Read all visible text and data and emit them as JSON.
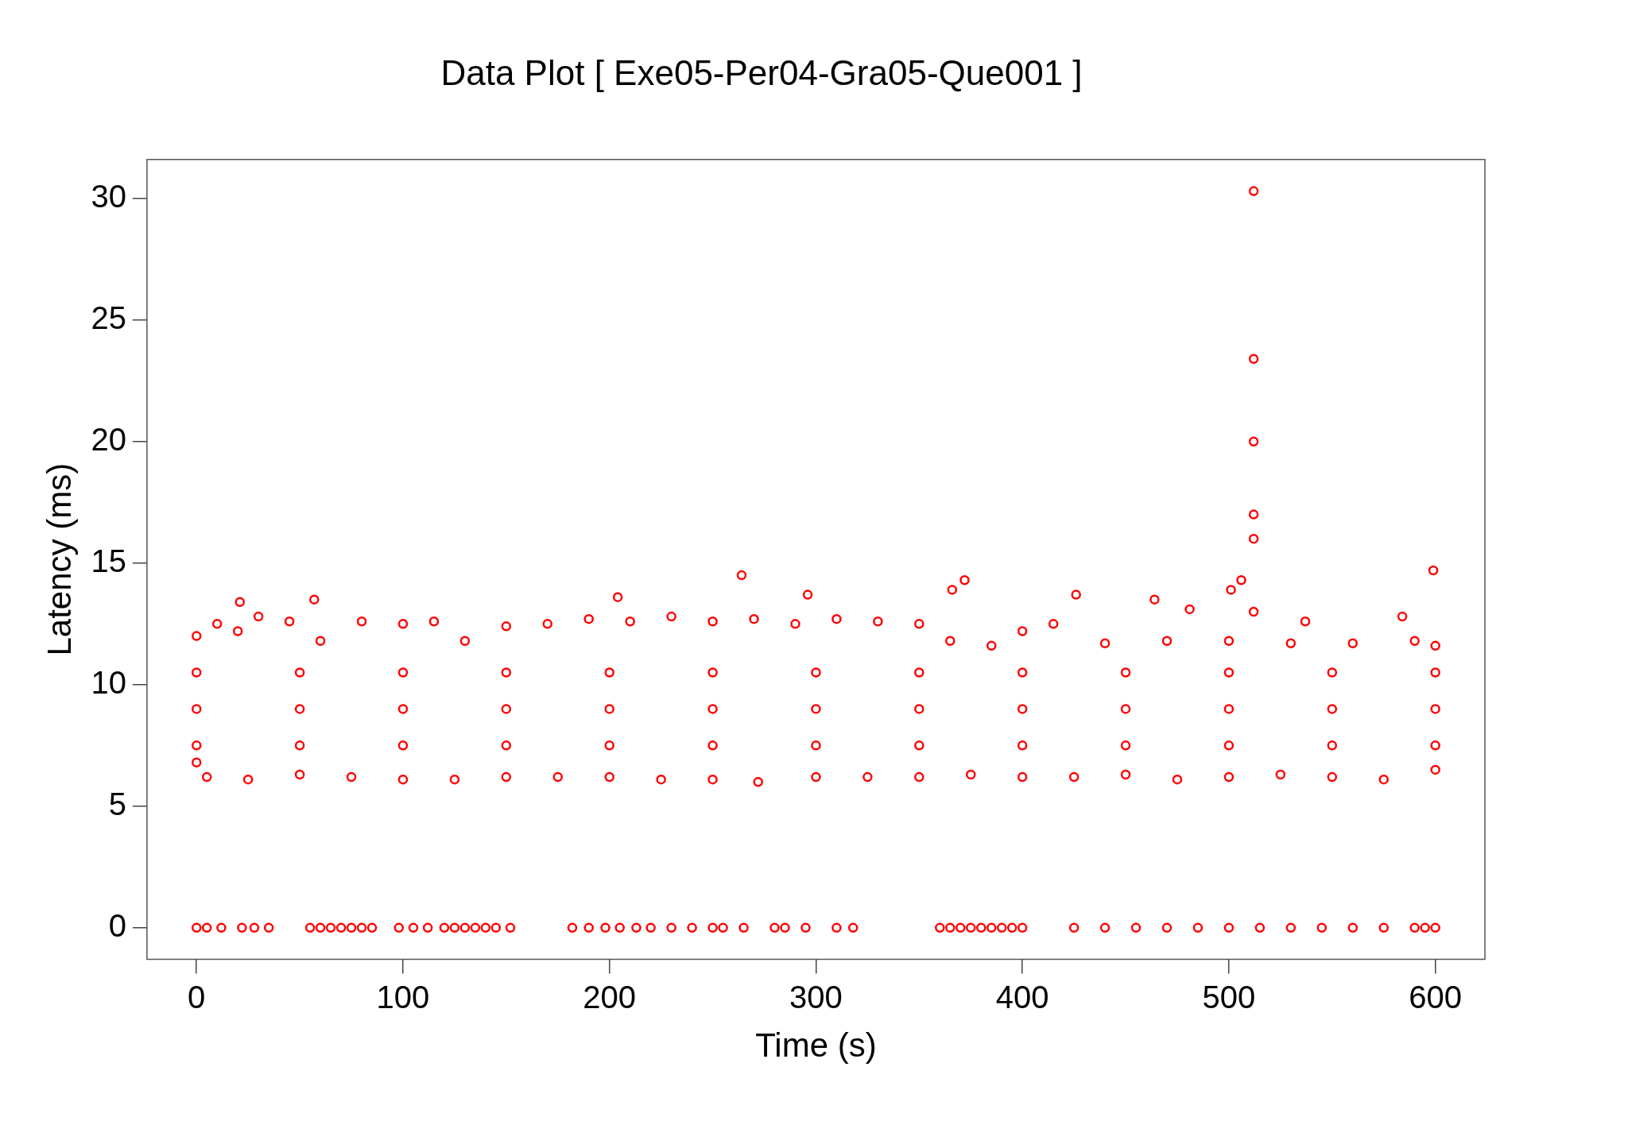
{
  "chart_data": {
    "type": "scatter",
    "title": "Data Plot [ Exe05-Per04-Gra05-Que001 ]",
    "xlabel": "Time (s)",
    "ylabel": "Latency (ms)",
    "xlim": [
      -24,
      624
    ],
    "ylim": [
      -1.3,
      31.6
    ],
    "xticks": [
      0,
      100,
      200,
      300,
      400,
      500,
      600
    ],
    "yticks": [
      0,
      5,
      10,
      15,
      20,
      25,
      30
    ],
    "grid": false,
    "legend": false,
    "marker": "circle",
    "series": [
      {
        "color": "#ff0000",
        "x": [
          0,
          10,
          20,
          30,
          45,
          60,
          80,
          100,
          115,
          130,
          150,
          170,
          190,
          210,
          230,
          250,
          270,
          290,
          310,
          330,
          350,
          365,
          385,
          400,
          415,
          440,
          470,
          500,
          530,
          560,
          590,
          600,
          0,
          5,
          25,
          50,
          75,
          100,
          125,
          150,
          175,
          200,
          225,
          250,
          272,
          300,
          325,
          350,
          375,
          400,
          425,
          450,
          475,
          500,
          525,
          550,
          575,
          600,
          0,
          50,
          100,
          150,
          200,
          250,
          300,
          350,
          400,
          450,
          500,
          550,
          600,
          0,
          50,
          100,
          150,
          200,
          250,
          300,
          350,
          400,
          450,
          500,
          550,
          600,
          0,
          50,
          100,
          150,
          200,
          250,
          300,
          350,
          400,
          450,
          500,
          550,
          600,
          512,
          512,
          512,
          512,
          512,
          512,
          599,
          264,
          372,
          366,
          501,
          506,
          426,
          464,
          204,
          57,
          21,
          296,
          481,
          537,
          584,
          0,
          5,
          12,
          22,
          28,
          35,
          55,
          60,
          65,
          70,
          75,
          80,
          85,
          98,
          105,
          112,
          120,
          125,
          130,
          135,
          140,
          145,
          152,
          182,
          190,
          198,
          205,
          213,
          220,
          230,
          240,
          250,
          255,
          265,
          280,
          285,
          295,
          310,
          318,
          360,
          365,
          370,
          375,
          380,
          385,
          390,
          395,
          400,
          425,
          440,
          455,
          470,
          485,
          500,
          515,
          530,
          545,
          560,
          575,
          590,
          595,
          600
        ],
        "values": [
          12.0,
          12.5,
          12.2,
          12.8,
          12.6,
          11.8,
          12.6,
          12.5,
          12.6,
          11.8,
          12.4,
          12.5,
          12.7,
          12.6,
          12.8,
          12.6,
          12.7,
          12.5,
          12.7,
          12.6,
          12.5,
          11.8,
          11.6,
          12.2,
          12.5,
          11.7,
          11.8,
          11.8,
          11.7,
          11.7,
          11.8,
          11.6,
          6.8,
          6.2,
          6.1,
          6.3,
          6.2,
          6.1,
          6.1,
          6.2,
          6.2,
          6.2,
          6.1,
          6.1,
          6.0,
          6.2,
          6.2,
          6.2,
          6.3,
          6.2,
          6.2,
          6.3,
          6.1,
          6.2,
          6.3,
          6.2,
          6.1,
          6.5,
          7.5,
          7.5,
          7.5,
          7.5,
          7.5,
          7.5,
          7.5,
          7.5,
          7.5,
          7.5,
          7.5,
          7.5,
          7.5,
          9,
          9,
          9,
          9,
          9,
          9,
          9,
          9,
          9,
          9,
          9,
          9,
          9,
          10.5,
          10.5,
          10.5,
          10.5,
          10.5,
          10.5,
          10.5,
          10.5,
          10.5,
          10.5,
          10.5,
          10.5,
          10.5,
          30.3,
          23.4,
          20.0,
          17.0,
          16.0,
          13.0,
          14.7,
          14.5,
          14.3,
          13.9,
          13.9,
          14.3,
          13.7,
          13.5,
          13.6,
          13.5,
          13.4,
          13.7,
          13.1,
          12.6,
          12.8,
          0,
          0,
          0,
          0,
          0,
          0,
          0,
          0,
          0,
          0,
          0,
          0,
          0,
          0,
          0,
          0,
          0,
          0,
          0,
          0,
          0,
          0,
          0,
          0,
          0,
          0,
          0,
          0,
          0,
          0,
          0,
          0,
          0,
          0,
          0,
          0,
          0,
          0,
          0,
          0,
          0,
          0,
          0,
          0,
          0,
          0,
          0,
          0,
          0,
          0,
          0,
          0,
          0,
          0,
          0,
          0,
          0,
          0,
          0,
          0,
          0,
          0
        ]
      }
    ]
  }
}
